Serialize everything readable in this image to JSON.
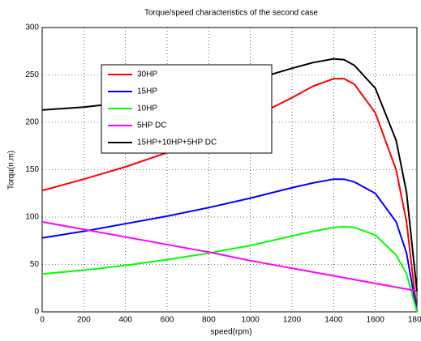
{
  "chart_data": {
    "type": "line",
    "title": "Torque/speed characteristics of the second case",
    "x_label": "speed(rpm)",
    "y_label": "Torqu(n.m)",
    "x": [
      0,
      200,
      400,
      600,
      800,
      1000,
      1200,
      1300,
      1400,
      1450,
      1500,
      1600,
      1700,
      1750,
      1800
    ],
    "series": [
      {
        "name": "30HP",
        "color": "#ff0000",
        "values": [
          128,
          140,
          153,
          168,
          185,
          204,
          226,
          238,
          246,
          246,
          240,
          210,
          150,
          95,
          0
        ]
      },
      {
        "name": "15HP",
        "color": "#0000ff",
        "values": [
          78,
          85,
          93,
          101,
          110,
          120,
          131,
          136,
          140,
          140,
          137,
          125,
          95,
          62,
          0
        ]
      },
      {
        "name": "10HP",
        "color": "#00ff00",
        "values": [
          40,
          44,
          49,
          55,
          62,
          70,
          80,
          85,
          89,
          90,
          89,
          81,
          60,
          40,
          0
        ]
      },
      {
        "name": "5HP DC",
        "color": "#ff00ff",
        "values": [
          95,
          87,
          79,
          71,
          63,
          54,
          46,
          42,
          38,
          36,
          34,
          30,
          26,
          24,
          22
        ]
      },
      {
        "name": "15HP+10HP+5HP DC",
        "color": "#000000",
        "values": [
          213,
          216,
          221,
          227,
          235,
          244,
          257,
          263,
          267,
          266,
          260,
          236,
          181,
          126,
          22
        ]
      }
    ],
    "xlim": [
      0,
      1800
    ],
    "xticks": [
      0,
      200,
      400,
      600,
      800,
      1000,
      1200,
      1400,
      1600,
      1800
    ],
    "ylim": [
      0,
      300
    ],
    "yticks": [
      0,
      50,
      100,
      150,
      200,
      250,
      300
    ],
    "grid": true,
    "legend": "upper left"
  }
}
